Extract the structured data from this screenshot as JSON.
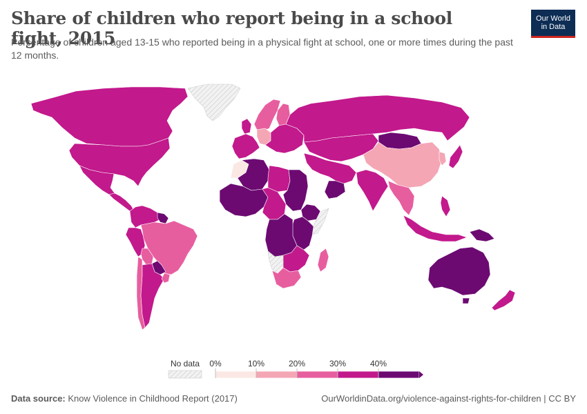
{
  "header": {
    "title": "Share of children who report being in a school fight, 2015",
    "subtitle": "Percentage of children aged 13-15 who reported being in a physical fight at school, one or more times during the past 12 months.",
    "logo_line1": "Our World",
    "logo_line2": "in Data"
  },
  "legend": {
    "no_data_label": "No data",
    "ticks": [
      "0%",
      "10%",
      "20%",
      "30%",
      "40%"
    ],
    "bins": [
      {
        "range": [
          0,
          10
        ],
        "color": "#fbe8e4"
      },
      {
        "range": [
          10,
          20
        ],
        "color": "#f4a6b5"
      },
      {
        "range": [
          20,
          30
        ],
        "color": "#e75e9f"
      },
      {
        "range": [
          30,
          40
        ],
        "color": "#c2198c"
      },
      {
        "range": [
          40,
          50
        ],
        "color": "#6c0a72"
      }
    ],
    "no_data_color": "#eeeeee"
  },
  "footer": {
    "source_label": "Data source:",
    "source_text": "Know Violence in Childhood Report (2017)",
    "url_text": "OurWorldinData.org/violence-against-rights-for-children | CC BY"
  },
  "colors": {
    "background": "#ffffff",
    "ocean": "#ffffff",
    "brand_blue": "#0d2d55",
    "brand_red": "#ce261e"
  },
  "map_regions": [
    {
      "name": "Canada",
      "value": 35
    },
    {
      "name": "United States",
      "value": 35
    },
    {
      "name": "Greenland",
      "value": null
    },
    {
      "name": "Mexico",
      "value": 35
    },
    {
      "name": "Central America",
      "value": 35
    },
    {
      "name": "Colombia and Venezuela",
      "value": 35
    },
    {
      "name": "Guyana",
      "value": 45
    },
    {
      "name": "Peru",
      "value": 35
    },
    {
      "name": "Brazil",
      "value": 25
    },
    {
      "name": "Bolivia",
      "value": 25
    },
    {
      "name": "Paraguay",
      "value": 45
    },
    {
      "name": "Chile",
      "value": 25
    },
    {
      "name": "Argentina",
      "value": 35
    },
    {
      "name": "Uruguay",
      "value": 25
    },
    {
      "name": "Western Europe",
      "value": 35
    },
    {
      "name": "Scandinavia",
      "value": 25
    },
    {
      "name": "Finland",
      "value": 25
    },
    {
      "name": "Germany",
      "value": 15
    },
    {
      "name": "Eastern Europe",
      "value": 35
    },
    {
      "name": "Russia",
      "value": 35
    },
    {
      "name": "Kazakhstan and Central Asia",
      "value": 35
    },
    {
      "name": "Mongolia",
      "value": 45
    },
    {
      "name": "China",
      "value": 15
    },
    {
      "name": "Japan",
      "value": 35
    },
    {
      "name": "Korea",
      "value": 15
    },
    {
      "name": "Middle East",
      "value": 35
    },
    {
      "name": "Yemen and Oman",
      "value": 45
    },
    {
      "name": "India",
      "value": 35
    },
    {
      "name": "Myanmar and Thailand",
      "value": 25
    },
    {
      "name": "Indonesia",
      "value": 35
    },
    {
      "name": "Philippines",
      "value": 35
    },
    {
      "name": "Papua New Guinea",
      "value": 45
    },
    {
      "name": "Australia",
      "value": 45
    },
    {
      "name": "New Zealand",
      "value": 35
    },
    {
      "name": "Morocco and Western Sahara",
      "value": 5
    },
    {
      "name": "Algeria",
      "value": 45
    },
    {
      "name": "Libya",
      "value": 35
    },
    {
      "name": "Egypt and Sudan",
      "value": 45
    },
    {
      "name": "West Africa",
      "value": 45
    },
    {
      "name": "Central Africa",
      "value": 35
    },
    {
      "name": "Ethiopia",
      "value": 45
    },
    {
      "name": "Somalia",
      "value": null
    },
    {
      "name": "East Africa",
      "value": 45
    },
    {
      "name": "DR Congo and Angola",
      "value": 45
    },
    {
      "name": "Southern Africa",
      "value": 35
    },
    {
      "name": "South Africa",
      "value": 25
    },
    {
      "name": "Namibia",
      "value": null
    },
    {
      "name": "Madagascar",
      "value": 25
    }
  ]
}
